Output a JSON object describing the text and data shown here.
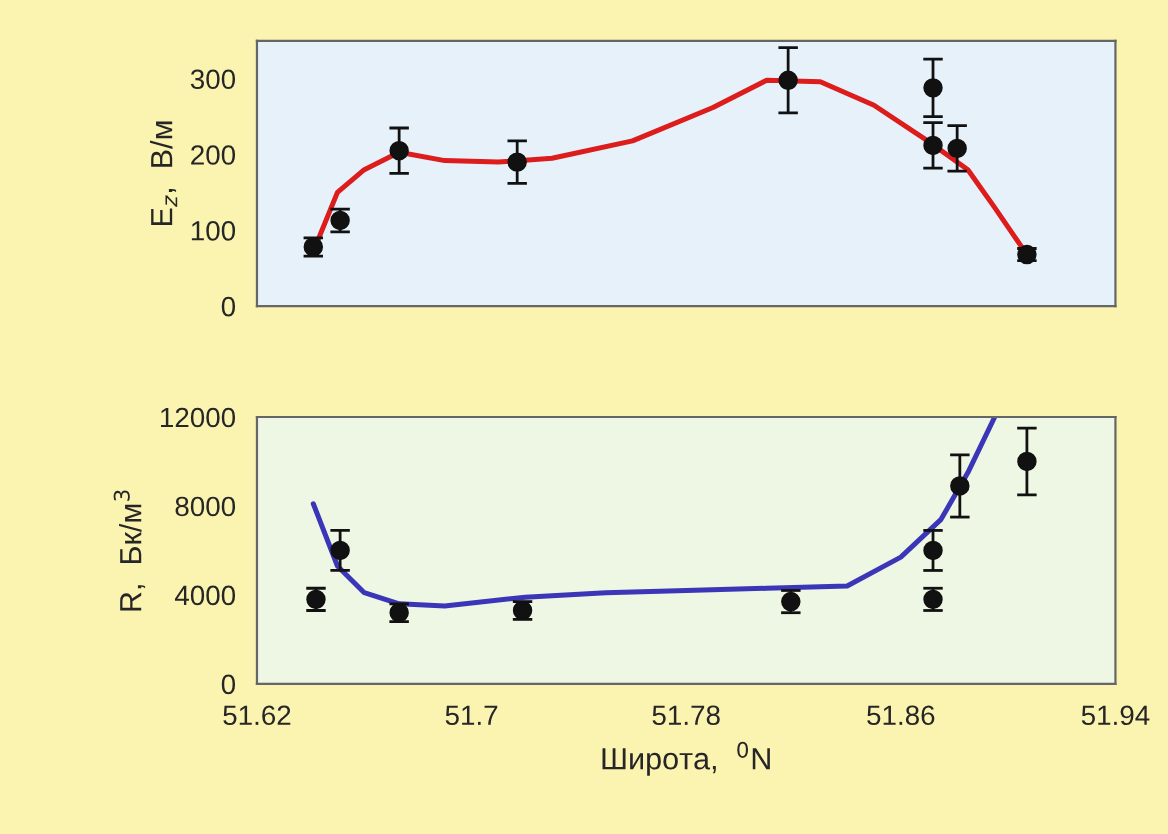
{
  "chart_data": [
    {
      "type": "scatter",
      "ylabel": "E$_{z}$,  В/м",
      "xlim": [
        51.62,
        51.94
      ],
      "xticks": [
        51.62,
        51.7,
        51.78,
        51.86,
        51.94
      ],
      "ylim": [
        0,
        350
      ],
      "yticks": [
        0,
        100,
        200,
        300
      ],
      "tick_labels": "y",
      "grid": false,
      "legend": false,
      "series": [
        {
          "marker": "circle",
          "color": "#111111",
          "x": [
            51.641,
            51.651,
            51.673,
            51.717,
            51.818,
            51.872,
            51.872,
            51.881,
            51.907
          ],
          "values": [
            78,
            113,
            205,
            190,
            298,
            288,
            212,
            208,
            68
          ],
          "errors": [
            12,
            15,
            30,
            28,
            43,
            38,
            30,
            30,
            8
          ]
        },
        {
          "type": "line",
          "marker": "none",
          "color": "#dd1c1c",
          "x": [
            51.641,
            51.65,
            51.66,
            51.673,
            51.69,
            51.71,
            51.73,
            51.76,
            51.79,
            51.81,
            51.83,
            51.85,
            51.87,
            51.885,
            51.895,
            51.907
          ],
          "values": [
            72,
            150,
            180,
            203,
            192,
            190,
            195,
            218,
            262,
            298,
            296,
            265,
            218,
            180,
            130,
            68
          ]
        }
      ]
    },
    {
      "type": "scatter",
      "ylabel": "R,  Бк/м$^{3}$",
      "xlabel": "Широта,  $^{0}$N",
      "xlim": [
        51.62,
        51.94
      ],
      "xticks": [
        51.62,
        51.7,
        51.78,
        51.86,
        51.94
      ],
      "ylim": [
        0,
        12000
      ],
      "yticks": [
        0,
        4000,
        8000,
        12000
      ],
      "grid": false,
      "legend": false,
      "series": [
        {
          "marker": "circle",
          "color": "#111111",
          "x": [
            51.642,
            51.651,
            51.673,
            51.719,
            51.819,
            51.872,
            51.872,
            51.882,
            51.907
          ],
          "values": [
            3800,
            6000,
            3200,
            3300,
            3700,
            3800,
            6000,
            8900,
            10000
          ],
          "errors": [
            500,
            900,
            400,
            400,
            500,
            500,
            900,
            1400,
            1500
          ]
        },
        {
          "type": "line",
          "marker": "none",
          "color": "#3b35b8",
          "x": [
            51.641,
            51.65,
            51.66,
            51.673,
            51.69,
            51.72,
            51.75,
            51.78,
            51.81,
            51.84,
            51.86,
            51.875,
            51.885,
            51.895
          ],
          "values": [
            8100,
            5300,
            4100,
            3600,
            3500,
            3900,
            4100,
            4200,
            4300,
            4400,
            5700,
            7400,
            9500,
            12000
          ]
        }
      ]
    }
  ]
}
